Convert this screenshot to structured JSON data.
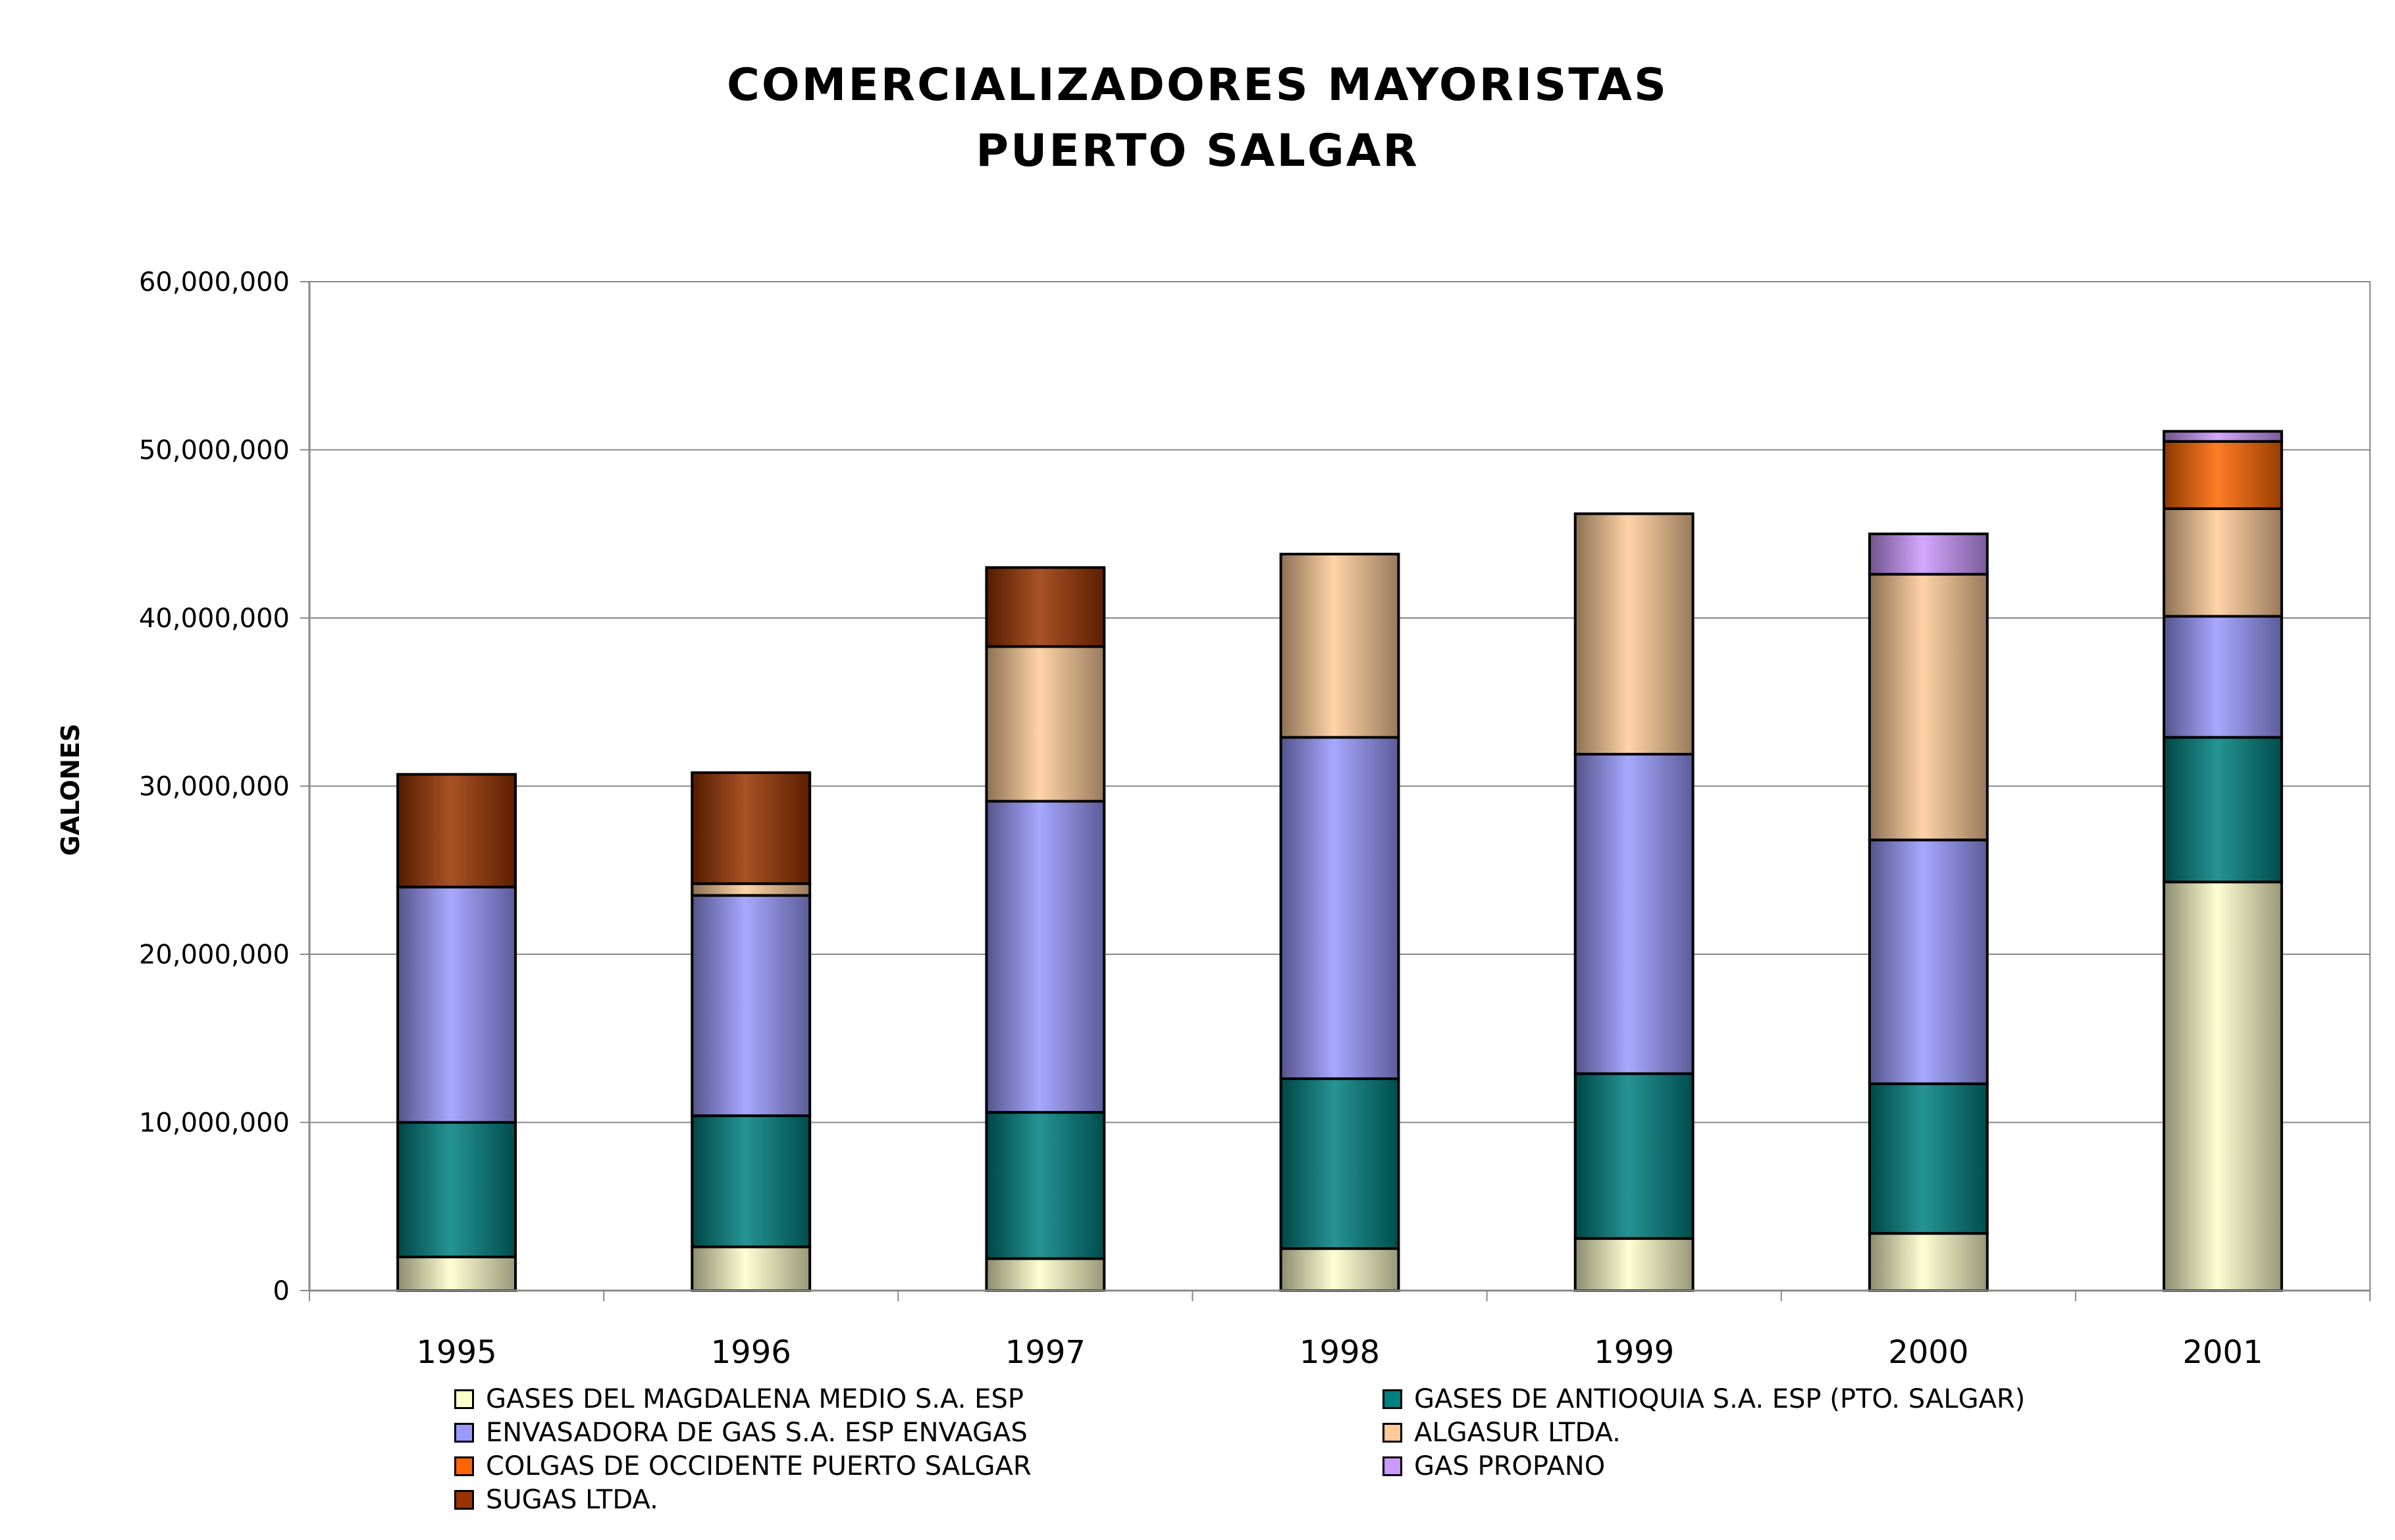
{
  "title_lines": [
    "COMERCIALIZADORES MAYORISTAS",
    "PUERTO SALGAR"
  ],
  "chart_data": {
    "type": "bar",
    "stacked": true,
    "title": "COMERCIALIZADORES MAYORISTAS PUERTO SALGAR",
    "xlabel": "",
    "ylabel": "GALONES",
    "ylim": [
      0,
      60000000
    ],
    "yticks": [
      "0",
      "10,000,000",
      "20,000,000",
      "30,000,000",
      "40,000,000",
      "50,000,000",
      "60,000,000"
    ],
    "grid": true,
    "legend_position": "bottom",
    "categories": [
      "1995",
      "1996",
      "1997",
      "1998",
      "1999",
      "2000",
      "2001"
    ],
    "series": [
      {
        "name": "GASES DEL MAGDALENA MEDIO S.A. ESP",
        "color": "#ffffcc",
        "values": [
          2000000,
          2600000,
          1900000,
          2500000,
          3100000,
          3400000,
          24300000
        ]
      },
      {
        "name": "GASES DE ANTIOQUIA S.A. ESP (PTO. SALGAR)",
        "color": "#008080",
        "values": [
          8000000,
          7800000,
          8700000,
          10100000,
          9800000,
          8900000,
          8600000
        ]
      },
      {
        "name": "ENVASADORA DE GAS S.A. ESP ENVAGAS",
        "color": "#9999ff",
        "values": [
          14000000,
          13100000,
          18500000,
          20300000,
          19000000,
          14500000,
          7200000
        ]
      },
      {
        "name": "ALGASUR LTDA.",
        "color": "#ffcc99",
        "values": [
          0,
          700000,
          9200000,
          10900000,
          14300000,
          15800000,
          6400000
        ]
      },
      {
        "name": "COLGAS DE OCCIDENTE PUERTO SALGAR",
        "color": "#ff6600",
        "values": [
          0,
          0,
          0,
          0,
          0,
          0,
          4000000
        ]
      },
      {
        "name": "GAS PROPANO",
        "color": "#cc99ff",
        "values": [
          0,
          0,
          0,
          0,
          0,
          2400000,
          600000
        ]
      },
      {
        "name": "SUGAS LTDA.",
        "color": "#993300",
        "values": [
          6700000,
          6600000,
          4700000,
          0,
          0,
          0,
          0
        ]
      }
    ]
  }
}
